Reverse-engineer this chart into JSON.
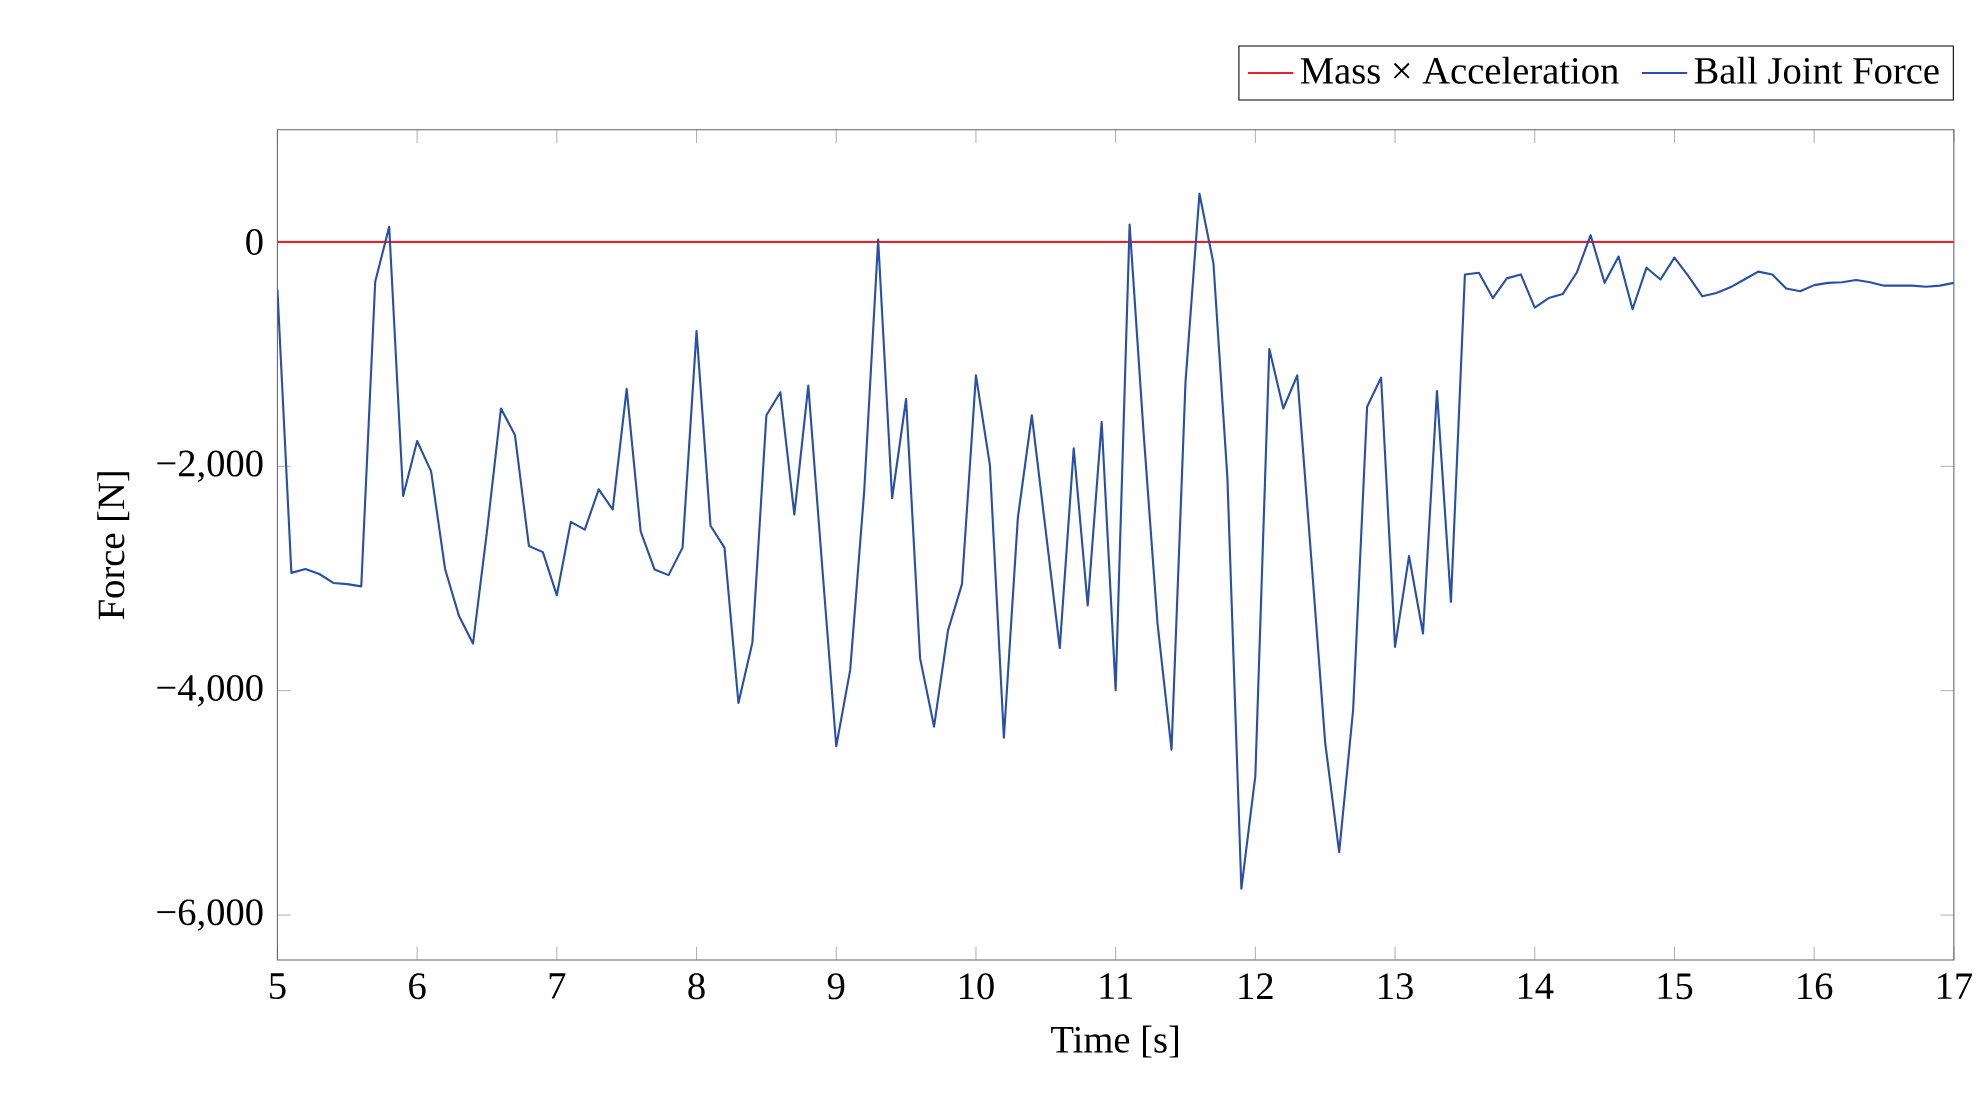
{
  "chart_data": {
    "type": "line",
    "xlabel": "Time [s]",
    "ylabel": "Force [N]",
    "xlim": [
      5,
      17
    ],
    "xticks": [
      5,
      6,
      7,
      8,
      9,
      10,
      11,
      12,
      13,
      14,
      15,
      16,
      17
    ],
    "ylim": [
      -6400,
      1000
    ],
    "yticks": [
      {
        "value": -6000,
        "label": "−6,000"
      },
      {
        "value": -4000,
        "label": "−4,000"
      },
      {
        "value": -2000,
        "label": "−2,000"
      },
      0
    ],
    "legend": "top right",
    "grid": false,
    "marker": "none",
    "line_style": "solid",
    "series": [
      {
        "name": "Mass × Acceleration",
        "color": "#e8202a",
        "x": [
          5,
          5.5,
          6,
          6.5,
          7,
          7.5,
          8,
          8.5,
          9,
          9.5,
          10,
          10.5,
          11,
          11.5,
          12,
          12.5,
          13,
          13.5,
          14,
          14.5,
          15,
          15.5,
          16,
          16.5,
          17
        ],
        "values": [
          0,
          0,
          0,
          0,
          0,
          0,
          0,
          0,
          0,
          0,
          0,
          0,
          0,
          0,
          0,
          0,
          0,
          0,
          0,
          0,
          0,
          0,
          0,
          0,
          0
        ]
      },
      {
        "name": "Ball Joint Force",
        "color": "#2a4fa8",
        "x": [
          5.0,
          5.1,
          5.2,
          5.3,
          5.4,
          5.5,
          5.6,
          5.7,
          5.8,
          5.9,
          6.0,
          6.1,
          6.2,
          6.3,
          6.4,
          6.5,
          6.6,
          6.7,
          6.8,
          6.9,
          7.0,
          7.1,
          7.2,
          7.3,
          7.4,
          7.5,
          7.6,
          7.7,
          7.8,
          7.9,
          8.0,
          8.1,
          8.2,
          8.3,
          8.4,
          8.5,
          8.6,
          8.7,
          8.8,
          8.9,
          9.0,
          9.1,
          9.2,
          9.3,
          9.4,
          9.5,
          9.6,
          9.7,
          9.8,
          9.9,
          10.0,
          10.1,
          10.2,
          10.3,
          10.4,
          10.5,
          10.6,
          10.7,
          10.8,
          10.9,
          11.0,
          11.1,
          11.2,
          11.3,
          11.4,
          11.5,
          11.6,
          11.7,
          11.8,
          11.9,
          12.0,
          12.1,
          12.2,
          12.3,
          12.4,
          12.5,
          12.6,
          12.7,
          12.8,
          12.9,
          13.0,
          13.1,
          13.2,
          13.3,
          13.4,
          13.5,
          13.6,
          13.7,
          13.8,
          13.9,
          14.0,
          14.1,
          14.2,
          14.3,
          14.4,
          14.5,
          14.6,
          14.7,
          14.8,
          14.9,
          15.0,
          15.1,
          15.2,
          15.3,
          15.4,
          15.5,
          15.6,
          15.7,
          15.8,
          15.9,
          16.0,
          16.1,
          16.2,
          16.3,
          16.4,
          16.5,
          16.6,
          16.7,
          16.8,
          16.9,
          17.0
        ],
        "values": [
          -425,
          -2950,
          -2915,
          -2960,
          -3040,
          -3050,
          -3070,
          -355,
          135,
          -2265,
          -1775,
          -2045,
          -2915,
          -3335,
          -3580,
          -2580,
          -1485,
          -1720,
          -2710,
          -2765,
          -3150,
          -2495,
          -2565,
          -2205,
          -2385,
          -1310,
          -2580,
          -2920,
          -2970,
          -2725,
          -795,
          -2530,
          -2725,
          -4110,
          -3570,
          -1545,
          -1340,
          -2430,
          -1280,
          -2900,
          -4495,
          -3815,
          -2225,
          20,
          -2285,
          -1400,
          -3710,
          -4320,
          -3465,
          -3050,
          -1190,
          -1990,
          -4420,
          -2460,
          -1545,
          -2580,
          -3620,
          -1840,
          -3240,
          -1605,
          -3995,
          155,
          -1700,
          -3405,
          -4525,
          -1250,
          430,
          -190,
          -2105,
          -5765,
          -4760,
          -955,
          -1485,
          -1190,
          -2815,
          -4465,
          -5440,
          -4170,
          -1470,
          -1210,
          -3610,
          -2800,
          -3490,
          -1330,
          -3210,
          -290,
          -275,
          -500,
          -325,
          -290,
          -585,
          -500,
          -465,
          -275,
          60,
          -365,
          -130,
          -600,
          -230,
          -335,
          -140,
          -305,
          -485,
          -455,
          -405,
          -335,
          -265,
          -290,
          -415,
          -440,
          -385,
          -365,
          -360,
          -340,
          -360,
          -390,
          -390,
          -390,
          -400,
          -390,
          -365
        ]
      }
    ]
  }
}
